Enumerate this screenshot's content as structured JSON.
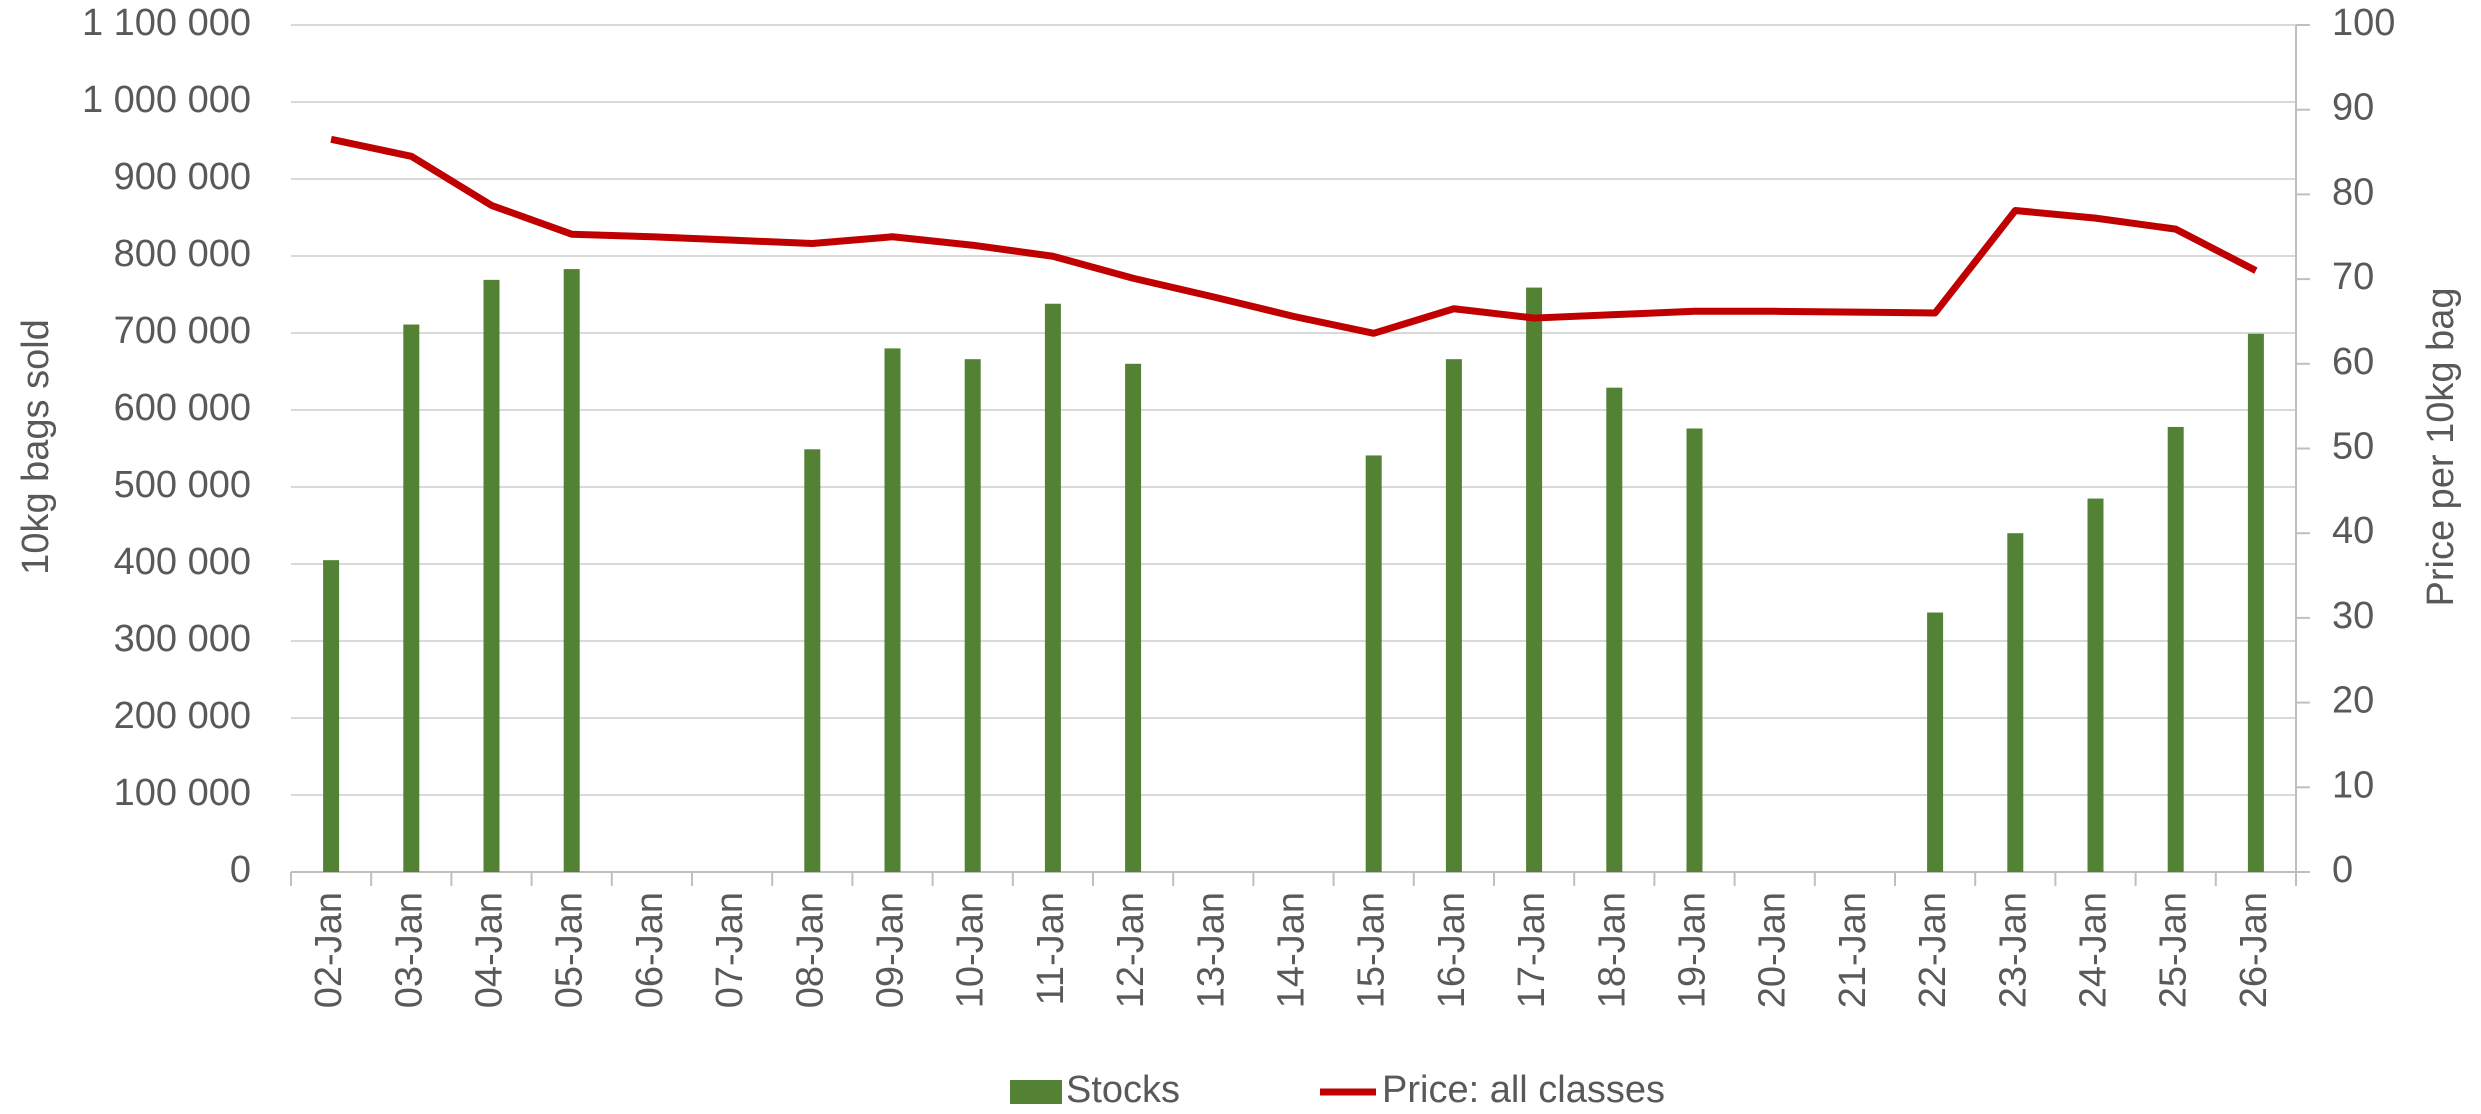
{
  "chart_data": {
    "type": "bar-line",
    "categories": [
      "02-Jan",
      "03-Jan",
      "04-Jan",
      "05-Jan",
      "06-Jan",
      "07-Jan",
      "08-Jan",
      "09-Jan",
      "10-Jan",
      "11-Jan",
      "12-Jan",
      "13-Jan",
      "14-Jan",
      "15-Jan",
      "16-Jan",
      "17-Jan",
      "18-Jan",
      "19-Jan",
      "20-Jan",
      "21-Jan",
      "22-Jan",
      "23-Jan",
      "24-Jan",
      "25-Jan",
      "26-Jan"
    ],
    "series": [
      {
        "name": "Stocks",
        "type": "bar",
        "color": "#548235",
        "values": [
          405000,
          711000,
          769000,
          783000,
          null,
          null,
          549000,
          680000,
          666000,
          738000,
          660000,
          null,
          null,
          541000,
          666000,
          759000,
          629000,
          576000,
          null,
          null,
          337000,
          440000,
          485000,
          578000,
          699000
        ]
      },
      {
        "name": "Price: all classes",
        "type": "line",
        "axis": "y2",
        "color": "#c00000",
        "values": [
          86.5,
          84.5,
          78.7,
          75.3,
          75,
          74.6,
          74.2,
          75,
          74,
          72.7,
          70.1,
          67.9,
          65.6,
          63.6,
          66.5,
          65.4,
          65.8,
          66.2,
          66.2,
          66.1,
          66,
          78.1,
          77.2,
          75.9,
          71
        ]
      }
    ],
    "ylabel": "10kg bags sold",
    "y2label": "Price per 10kg bag",
    "ylim": [
      0,
      1100000
    ],
    "yticks": [
      0,
      {
        "value": 100000,
        "label": "100 000"
      },
      {
        "value": 200000,
        "label": "200 000"
      },
      {
        "value": 300000,
        "label": "300 000"
      },
      {
        "value": 400000,
        "label": "400 000"
      },
      {
        "value": 500000,
        "label": "500 000"
      },
      {
        "value": 600000,
        "label": "600 000"
      },
      {
        "value": 700000,
        "label": "700 000"
      },
      {
        "value": 800000,
        "label": "800 000"
      },
      {
        "value": 900000,
        "label": "900 000"
      },
      {
        "value": 1000000,
        "label": "1 000 000"
      },
      {
        "value": 1100000,
        "label": "1 100 000"
      }
    ],
    "y2lim": [
      0,
      100
    ],
    "y2ticks": [
      0,
      10,
      20,
      30,
      40,
      50,
      60,
      70,
      80,
      90,
      100
    ],
    "grid": true,
    "legend": "bottom"
  }
}
